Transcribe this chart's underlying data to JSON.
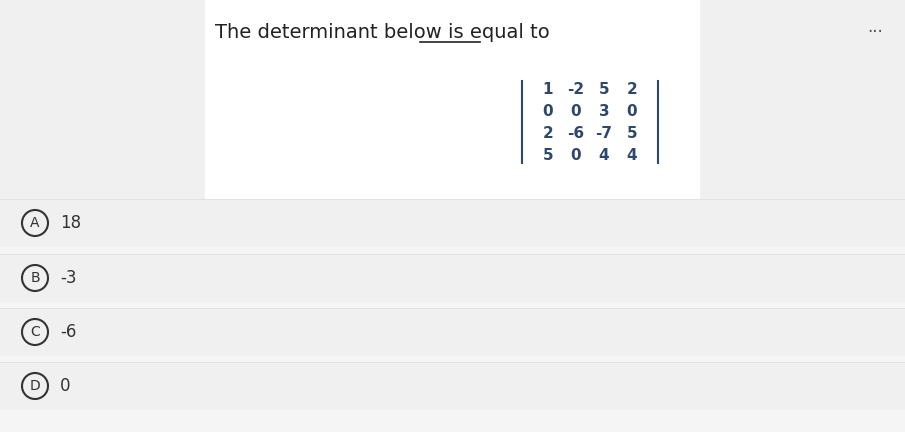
{
  "title": "The determinant below is equal to",
  "matrix": [
    [
      "1",
      "-2",
      "5",
      "2"
    ],
    [
      "0",
      "0",
      "3",
      "0"
    ],
    [
      "2",
      "-6",
      "-7",
      "5"
    ],
    [
      "5",
      "0",
      "4",
      "4"
    ]
  ],
  "choices": [
    {
      "letter": "A",
      "text": "18"
    },
    {
      "letter": "B",
      "text": "-3"
    },
    {
      "letter": "C",
      "text": "-6"
    },
    {
      "letter": "D",
      "text": "0"
    }
  ],
  "bg_color": "#f5f5f5",
  "panel_bg": "#ffffff",
  "text_color": "#2c4770",
  "title_color": "#222222",
  "choice_bg": "#f0f0f0",
  "dots_color": "#555555"
}
